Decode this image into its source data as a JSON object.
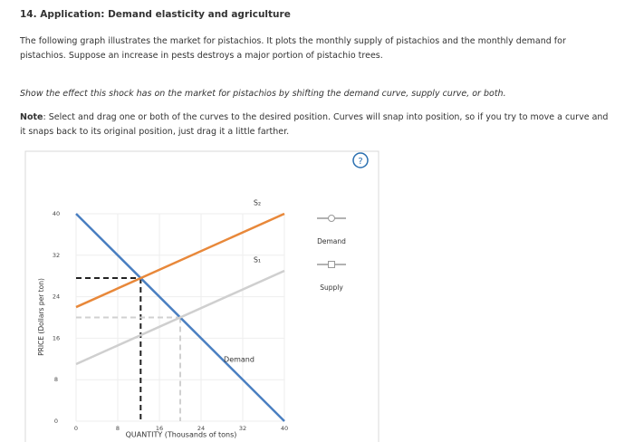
{
  "header": {
    "title": "14. Application: Demand elasticity and agriculture"
  },
  "intro": "The following graph illustrates the market for pistachios. It plots the monthly supply of pistachios and the monthly demand for pistachios. Suppose an increase in pests destroys a major portion of pistachio trees.",
  "instruction": "Show the effect this shock has on the market for pistachios by shifting the demand curve, supply curve, or both.",
  "note": {
    "label": "Note",
    "text": ": Select and drag one or both of the curves to the desired position. Curves will snap into position, so if you try to move a curve and it snaps back to its original position, just drag it a little farther."
  },
  "help": "?",
  "chart_data": {
    "type": "line",
    "x_label": "QUANTITY (Thousands of tons)",
    "y_label": "PRICE (Dollars per ton)",
    "xlim": [
      0,
      40
    ],
    "ylim": [
      0,
      40
    ],
    "xticks": [
      0,
      8,
      16,
      24,
      32,
      40
    ],
    "yticks": [
      0,
      8,
      16,
      24,
      32,
      40
    ],
    "grid": true,
    "series": [
      {
        "name": "Demand",
        "color": "#4a7fc1",
        "x": [
          0,
          40
        ],
        "values": [
          40,
          0
        ]
      },
      {
        "name": "S₁",
        "color": "#cfcfcf",
        "x": [
          0,
          40
        ],
        "values": [
          11,
          29
        ]
      },
      {
        "name": "S₂",
        "color": "#e8883a",
        "x": [
          0,
          40
        ],
        "values": [
          22,
          40
        ]
      }
    ],
    "guides": [
      {
        "color": "#222222",
        "x": 12.4,
        "y": 27.6
      },
      {
        "color": "#d0d0d0",
        "x": 20,
        "y": 20
      }
    ],
    "legend": [
      {
        "label": "Demand",
        "marker": "circle"
      },
      {
        "label": "Supply",
        "marker": "square"
      }
    ]
  }
}
